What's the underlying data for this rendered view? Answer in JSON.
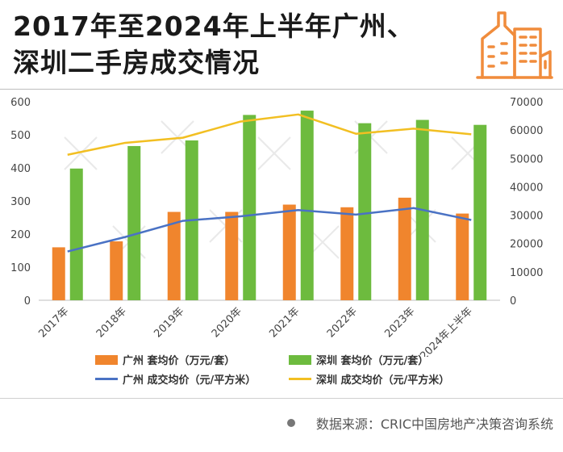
{
  "title": {
    "line1": "2017年至2024年上半年广州、",
    "line2": "深圳二手房成交情况"
  },
  "logo": {
    "icon": "building-icon",
    "color": "#F08C3C"
  },
  "source": {
    "text": "数据来源：CRIC中国房地产决策咨询系统"
  },
  "chart_data": {
    "type": "bar",
    "categories": [
      "2017年",
      "2018年",
      "2019年",
      "2020年",
      "2021年",
      "2022年",
      "2023年",
      "2024年上半年"
    ],
    "series": [
      {
        "name": "广州 套均价（万元/套）",
        "kind": "bar",
        "axis": "left",
        "color": "#F0852D",
        "values": [
          160,
          178,
          267,
          267,
          289,
          281,
          310,
          262
        ]
      },
      {
        "name": "深圳 套均价（万元/套）",
        "kind": "bar",
        "axis": "left",
        "color": "#6DBB3E",
        "values": [
          398,
          466,
          483,
          560,
          573,
          535,
          545,
          530
        ]
      },
      {
        "name": "广州 成交均价（元/平方米）",
        "kind": "line",
        "axis": "right",
        "color": "#4A72C4",
        "values": [
          17200,
          22300,
          28000,
          29600,
          31800,
          30200,
          32500,
          28300
        ]
      },
      {
        "name": "深圳 成交均价（元/平方米）",
        "kind": "line",
        "axis": "right",
        "color": "#F2BF22",
        "values": [
          51300,
          55500,
          57300,
          63000,
          65500,
          58700,
          60500,
          58500
        ]
      }
    ],
    "ylim_left": [
      0,
      600
    ],
    "yticks_left": [
      "0",
      "100",
      "200",
      "300",
      "400",
      "500",
      "600"
    ],
    "ylim_right": [
      0,
      70000
    ],
    "yticks_right": [
      "0",
      "10000",
      "20000",
      "30000",
      "40000",
      "50000",
      "60000",
      "70000"
    ],
    "grid": false,
    "legend_position": "bottom"
  }
}
